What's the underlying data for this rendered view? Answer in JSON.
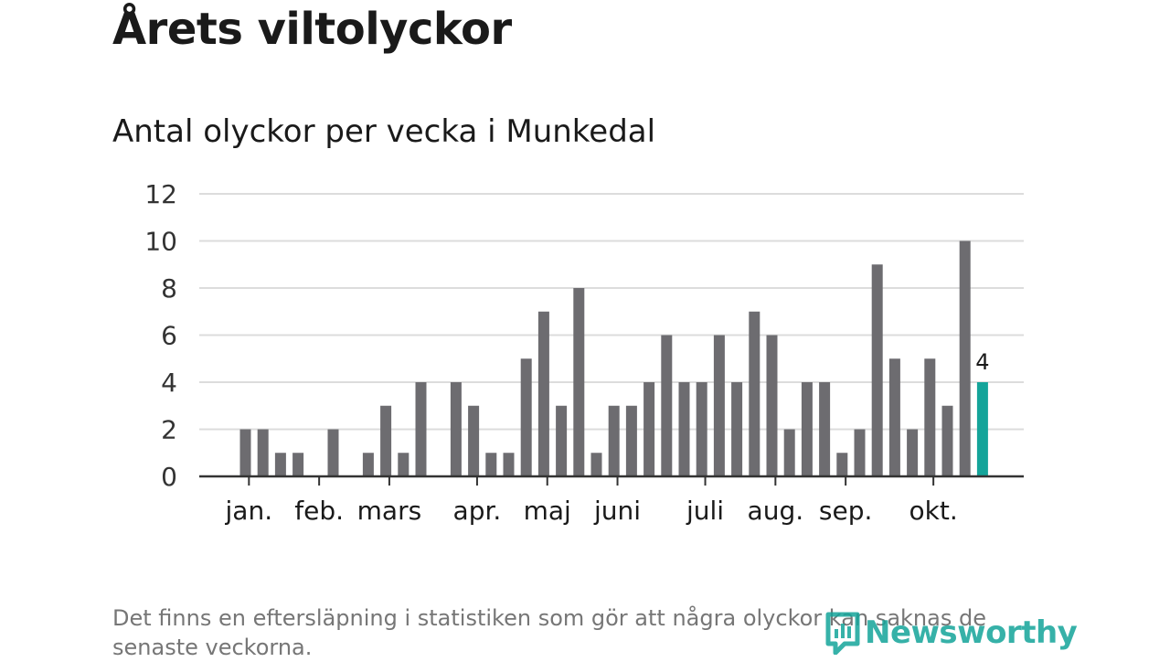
{
  "header": {
    "title": "Årets viltolyckor",
    "subtitle": "Antal olyckor per vecka i Munkedal"
  },
  "footnote": "Det finns en eftersläpning i statistiken som gör att några olyckor kan saknas de senaste veckorna.",
  "brand": {
    "name": "Newsworthy",
    "color": "#14a49a"
  },
  "chart_data": {
    "type": "bar",
    "title": "Antal olyckor per vecka i Munkedal",
    "xlabel": "",
    "ylabel": "",
    "ylim": [
      0,
      12
    ],
    "yticks": [
      0,
      2,
      4,
      6,
      8,
      10,
      12
    ],
    "grid": true,
    "bar_color": "#6d6c70",
    "highlight_color": "#14a49a",
    "x_unit": "week",
    "weeks": [
      1,
      2,
      3,
      4,
      5,
      6,
      7,
      8,
      9,
      10,
      11,
      12,
      13,
      14,
      15,
      16,
      17,
      18,
      19,
      20,
      21,
      22,
      23,
      24,
      25,
      26,
      27,
      28,
      29,
      30,
      31,
      32,
      33,
      34,
      35,
      36,
      37,
      38,
      39,
      40,
      41,
      42,
      43,
      44,
      45
    ],
    "values": [
      0,
      0,
      2,
      2,
      1,
      1,
      0,
      2,
      0,
      1,
      3,
      1,
      4,
      0,
      4,
      3,
      1,
      1,
      5,
      7,
      3,
      8,
      1,
      3,
      3,
      4,
      6,
      4,
      4,
      6,
      4,
      7,
      6,
      2,
      4,
      4,
      1,
      2,
      9,
      5,
      2,
      5,
      3,
      10,
      4
    ],
    "highlight_index": 44,
    "highlight_label": "4",
    "month_labels": [
      {
        "label": "jan.",
        "week": 3.2
      },
      {
        "label": "feb.",
        "week": 7.2
      },
      {
        "label": "mars",
        "week": 11.2
      },
      {
        "label": "apr.",
        "week": 16.2
      },
      {
        "label": "maj",
        "week": 20.2
      },
      {
        "label": "juni",
        "week": 24.2
      },
      {
        "label": "juli",
        "week": 29.2
      },
      {
        "label": "aug.",
        "week": 33.2
      },
      {
        "label": "sep.",
        "week": 37.2
      },
      {
        "label": "okt.",
        "week": 42.2
      }
    ]
  }
}
